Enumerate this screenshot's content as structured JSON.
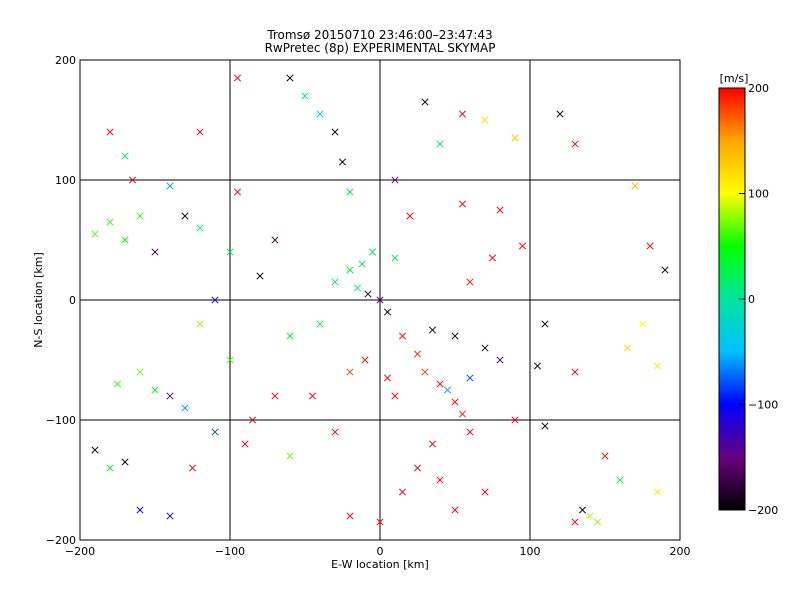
{
  "chart_data": {
    "type": "scatter",
    "title": "Tromsø 20150710 23:46:00–23:47:43",
    "subtitle": "RwPretec (8p) EXPERIMENTAL SKYMAP",
    "xlabel": "E-W location [km]",
    "ylabel": "N-S location [km]",
    "xlim": [
      -200,
      200
    ],
    "ylim": [
      -200,
      200
    ],
    "x_ticks": [
      -200,
      -100,
      0,
      100,
      200
    ],
    "y_ticks": [
      -200,
      -100,
      0,
      100,
      200
    ],
    "x_tick_labels": [
      "−200",
      "−100",
      "0",
      "100",
      "200"
    ],
    "y_tick_labels": [
      "−200",
      "−100",
      "0",
      "100",
      "200"
    ],
    "grid": true,
    "colorbar": {
      "label": "[m/s]",
      "range": [
        -200,
        200
      ],
      "ticks": [
        -200,
        -100,
        0,
        100,
        200
      ],
      "tick_labels": [
        "−200",
        "−100",
        "0",
        "100",
        "200"
      ],
      "placement": "right",
      "colors": [
        "#000000",
        "#6a0080",
        "#0000ff",
        "#00bfff",
        "#00e5a0",
        "#00ff00",
        "#ffff00",
        "#ffa500",
        "#ff0000"
      ]
    },
    "points": [
      {
        "x": 0,
        "y": 0,
        "v": -150,
        "m": "x"
      },
      {
        "x": 5,
        "y": -10,
        "v": -200,
        "m": "x"
      },
      {
        "x": -8,
        "y": 5,
        "v": -180,
        "m": "x"
      },
      {
        "x": -12,
        "y": 30,
        "v": 20,
        "m": "x"
      },
      {
        "x": -20,
        "y": 25,
        "v": 40,
        "m": "x"
      },
      {
        "x": -5,
        "y": 40,
        "v": 30,
        "m": "x"
      },
      {
        "x": 10,
        "y": 35,
        "v": 20,
        "m": "x"
      },
      {
        "x": -30,
        "y": 15,
        "v": 10,
        "m": "x"
      },
      {
        "x": -15,
        "y": 10,
        "v": 5,
        "m": "x"
      },
      {
        "x": 15,
        "y": -30,
        "v": 200,
        "m": "x"
      },
      {
        "x": 25,
        "y": -45,
        "v": 190,
        "m": "x"
      },
      {
        "x": 30,
        "y": -60,
        "v": 180,
        "m": "x"
      },
      {
        "x": 40,
        "y": -70,
        "v": 200,
        "m": "x"
      },
      {
        "x": 50,
        "y": -85,
        "v": 200,
        "m": "x"
      },
      {
        "x": 55,
        "y": -95,
        "v": 190,
        "m": "x"
      },
      {
        "x": 45,
        "y": -75,
        "v": -60,
        "m": "x"
      },
      {
        "x": 60,
        "y": -65,
        "v": -80,
        "m": "x"
      },
      {
        "x": 35,
        "y": -25,
        "v": -190,
        "m": "x"
      },
      {
        "x": 50,
        "y": -30,
        "v": -200,
        "m": "x"
      },
      {
        "x": 70,
        "y": -40,
        "v": -180,
        "m": "x"
      },
      {
        "x": 80,
        "y": -50,
        "v": -170,
        "m": "x"
      },
      {
        "x": -10,
        "y": -50,
        "v": 200,
        "m": "x"
      },
      {
        "x": -20,
        "y": -60,
        "v": 180,
        "m": "x"
      },
      {
        "x": 5,
        "y": -65,
        "v": 200,
        "m": "x"
      },
      {
        "x": 10,
        "y": -80,
        "v": 200,
        "m": "x"
      },
      {
        "x": -40,
        "y": -20,
        "v": 30,
        "m": "x"
      },
      {
        "x": -60,
        "y": -30,
        "v": 40,
        "m": "x"
      },
      {
        "x": -180,
        "y": 65,
        "v": 60,
        "m": "x"
      },
      {
        "x": -190,
        "y": 55,
        "v": 70,
        "m": "x"
      },
      {
        "x": -170,
        "y": 50,
        "v": 50,
        "m": "x"
      },
      {
        "x": -160,
        "y": 70,
        "v": 60,
        "m": "x"
      },
      {
        "x": -175,
        "y": -70,
        "v": 60,
        "m": "x"
      },
      {
        "x": -160,
        "y": -60,
        "v": 70,
        "m": "x"
      },
      {
        "x": -150,
        "y": -75,
        "v": 40,
        "m": "x"
      },
      {
        "x": -140,
        "y": -80,
        "v": -150,
        "m": "x"
      },
      {
        "x": -130,
        "y": -90,
        "v": -60,
        "m": "x"
      },
      {
        "x": -120,
        "y": 60,
        "v": 10,
        "m": "x"
      },
      {
        "x": -130,
        "y": 70,
        "v": -190,
        "m": "x"
      },
      {
        "x": -150,
        "y": 40,
        "v": -170,
        "m": "x"
      },
      {
        "x": -170,
        "y": 120,
        "v": 30,
        "m": "x"
      },
      {
        "x": -180,
        "y": 140,
        "v": 200,
        "m": "x"
      },
      {
        "x": -120,
        "y": 140,
        "v": 200,
        "m": "x"
      },
      {
        "x": -95,
        "y": 185,
        "v": 200,
        "m": "x"
      },
      {
        "x": -60,
        "y": 185,
        "v": -200,
        "m": "x"
      },
      {
        "x": -50,
        "y": 170,
        "v": 20,
        "m": "x"
      },
      {
        "x": -40,
        "y": 155,
        "v": -40,
        "m": "x"
      },
      {
        "x": -30,
        "y": 140,
        "v": -200,
        "m": "x"
      },
      {
        "x": -25,
        "y": 115,
        "v": -200,
        "m": "x"
      },
      {
        "x": 30,
        "y": 165,
        "v": -200,
        "m": "x"
      },
      {
        "x": 55,
        "y": 155,
        "v": 200,
        "m": "x"
      },
      {
        "x": 70,
        "y": 150,
        "v": 120,
        "m": "x"
      },
      {
        "x": 90,
        "y": 135,
        "v": 130,
        "m": "x"
      },
      {
        "x": 120,
        "y": 155,
        "v": -200,
        "m": "x"
      },
      {
        "x": 130,
        "y": 130,
        "v": 200,
        "m": "x"
      },
      {
        "x": 170,
        "y": 95,
        "v": 140,
        "m": "x"
      },
      {
        "x": 180,
        "y": 45,
        "v": 200,
        "m": "x"
      },
      {
        "x": 190,
        "y": 25,
        "v": -200,
        "m": "x"
      },
      {
        "x": 175,
        "y": -20,
        "v": 100,
        "m": "x"
      },
      {
        "x": 165,
        "y": -40,
        "v": 120,
        "m": "x"
      },
      {
        "x": 185,
        "y": -55,
        "v": 110,
        "m": "x"
      },
      {
        "x": 130,
        "y": -60,
        "v": 200,
        "m": "x"
      },
      {
        "x": 105,
        "y": -55,
        "v": -200,
        "m": "x"
      },
      {
        "x": 110,
        "y": -20,
        "v": -200,
        "m": "x"
      },
      {
        "x": 95,
        "y": 45,
        "v": 200,
        "m": "x"
      },
      {
        "x": 75,
        "y": 35,
        "v": 200,
        "m": "x"
      },
      {
        "x": 60,
        "y": 15,
        "v": 190,
        "m": "x"
      },
      {
        "x": 60,
        "y": -110,
        "v": 200,
        "m": "x"
      },
      {
        "x": 35,
        "y": -120,
        "v": 200,
        "m": "x"
      },
      {
        "x": 25,
        "y": -140,
        "v": 200,
        "m": "x"
      },
      {
        "x": 40,
        "y": -150,
        "v": 200,
        "m": "x"
      },
      {
        "x": 15,
        "y": -160,
        "v": 200,
        "m": "x"
      },
      {
        "x": 70,
        "y": -160,
        "v": 200,
        "m": "x"
      },
      {
        "x": 50,
        "y": -175,
        "v": 200,
        "m": "x"
      },
      {
        "x": 0,
        "y": -185,
        "v": 200,
        "m": "x"
      },
      {
        "x": -20,
        "y": -180,
        "v": 200,
        "m": "x"
      },
      {
        "x": -30,
        "y": -110,
        "v": 200,
        "m": "x"
      },
      {
        "x": 135,
        "y": -175,
        "v": -200,
        "m": "x"
      },
      {
        "x": 140,
        "y": -180,
        "v": 90,
        "m": "x"
      },
      {
        "x": 145,
        "y": -185,
        "v": 80,
        "m": "x"
      },
      {
        "x": 130,
        "y": -185,
        "v": 200,
        "m": "x"
      },
      {
        "x": -140,
        "y": -180,
        "v": -120,
        "m": "x"
      },
      {
        "x": -160,
        "y": -175,
        "v": -100,
        "m": "x"
      },
      {
        "x": -180,
        "y": -140,
        "v": 40,
        "m": "x"
      },
      {
        "x": -190,
        "y": -125,
        "v": -200,
        "m": "x"
      },
      {
        "x": -170,
        "y": -135,
        "v": -200,
        "m": "x"
      },
      {
        "x": -125,
        "y": -140,
        "v": 200,
        "m": "x"
      },
      {
        "x": -90,
        "y": -120,
        "v": 200,
        "m": "x"
      },
      {
        "x": -110,
        "y": -110,
        "v": -80,
        "m": "x"
      },
      {
        "x": -85,
        "y": -100,
        "v": 200,
        "m": "x"
      },
      {
        "x": -60,
        "y": -130,
        "v": 70,
        "m": "x"
      },
      {
        "x": -20,
        "y": 90,
        "v": 40,
        "m": "x"
      },
      {
        "x": 20,
        "y": 70,
        "v": 200,
        "m": "x"
      },
      {
        "x": -95,
        "y": 90,
        "v": 200,
        "m": "x"
      },
      {
        "x": -140,
        "y": 95,
        "v": -60,
        "m": "x"
      },
      {
        "x": -165,
        "y": 100,
        "v": 200,
        "m": "x"
      },
      {
        "x": 10,
        "y": 100,
        "v": -150,
        "m": "x"
      },
      {
        "x": 40,
        "y": 130,
        "v": 30,
        "m": "x"
      },
      {
        "x": 55,
        "y": 80,
        "v": 200,
        "m": "x"
      },
      {
        "x": 80,
        "y": 75,
        "v": 200,
        "m": "x"
      },
      {
        "x": -70,
        "y": 50,
        "v": -180,
        "m": "x"
      },
      {
        "x": -100,
        "y": 40,
        "v": 30,
        "m": "x"
      },
      {
        "x": -80,
        "y": 20,
        "v": -200,
        "m": "x"
      },
      {
        "x": -110,
        "y": 0,
        "v": -120,
        "m": "x"
      },
      {
        "x": -120,
        "y": -20,
        "v": 80,
        "m": "x"
      },
      {
        "x": -100,
        "y": -50,
        "v": 60,
        "m": "x"
      },
      {
        "x": -70,
        "y": -80,
        "v": 200,
        "m": "x"
      },
      {
        "x": -45,
        "y": -80,
        "v": 200,
        "m": "x"
      },
      {
        "x": 90,
        "y": -100,
        "v": 200,
        "m": "x"
      },
      {
        "x": 110,
        "y": -105,
        "v": -200,
        "m": "x"
      },
      {
        "x": 150,
        "y": -130,
        "v": 200,
        "m": "x"
      },
      {
        "x": 160,
        "y": -150,
        "v": 40,
        "m": "x"
      },
      {
        "x": 185,
        "y": -160,
        "v": 110,
        "m": "x"
      }
    ]
  }
}
